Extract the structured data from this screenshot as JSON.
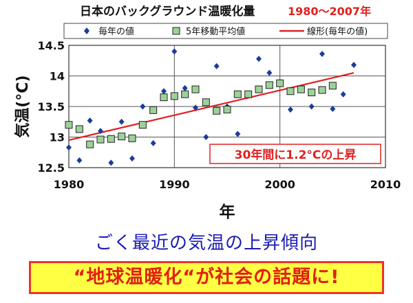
{
  "chart_data": {
    "type": "scatter",
    "title": "日本のバックグラウンド温暖化量",
    "title_period": "1980〜2007年",
    "xlabel": "年",
    "ylabel": "気温(°C)",
    "xlim": [
      1980,
      2010
    ],
    "ylim": [
      12.5,
      14.5
    ],
    "x_ticks": [
      "1980",
      "1990",
      "2000",
      "2010"
    ],
    "y_ticks": [
      "12.5",
      "13",
      "13.5",
      "14",
      "14.5"
    ],
    "grid": true,
    "legend_position": "top",
    "series": [
      {
        "name": "毎年の値",
        "marker": "diamond",
        "color": "#1a3c9c",
        "points": [
          [
            1980,
            12.83
          ],
          [
            1981,
            12.62
          ],
          [
            1982,
            13.27
          ],
          [
            1983,
            13.1
          ],
          [
            1984,
            12.58
          ],
          [
            1985,
            13.25
          ],
          [
            1986,
            12.65
          ],
          [
            1987,
            13.5
          ],
          [
            1988,
            12.9
          ],
          [
            1989,
            13.75
          ],
          [
            1990,
            14.4
          ],
          [
            1991,
            13.8
          ],
          [
            1992,
            13.48
          ],
          [
            1993,
            13.0
          ],
          [
            1994,
            14.16
          ],
          [
            1995,
            13.5
          ],
          [
            1996,
            13.05
          ],
          [
            1997,
            13.7
          ],
          [
            1998,
            14.28
          ],
          [
            1999,
            14.05
          ],
          [
            2000,
            13.9
          ],
          [
            2001,
            13.45
          ],
          [
            2002,
            13.8
          ],
          [
            2003,
            13.5
          ],
          [
            2004,
            14.36
          ],
          [
            2005,
            13.46
          ],
          [
            2006,
            13.7
          ],
          [
            2007,
            14.18
          ]
        ]
      },
      {
        "name": "5年移動平均値",
        "marker": "square",
        "color": "#9ed19a",
        "edge_color": "#222222",
        "points": [
          [
            1980,
            13.2
          ],
          [
            1981,
            13.13
          ],
          [
            1982,
            12.88
          ],
          [
            1983,
            12.96
          ],
          [
            1984,
            12.97
          ],
          [
            1985,
            13.01
          ],
          [
            1986,
            12.98
          ],
          [
            1987,
            13.2
          ],
          [
            1988,
            13.44
          ],
          [
            1989,
            13.65
          ],
          [
            1990,
            13.67
          ],
          [
            1991,
            13.7
          ],
          [
            1992,
            13.78
          ],
          [
            1993,
            13.57
          ],
          [
            1994,
            13.43
          ],
          [
            1995,
            13.45
          ],
          [
            1996,
            13.7
          ],
          [
            1997,
            13.7
          ],
          [
            1998,
            13.78
          ],
          [
            1999,
            13.85
          ],
          [
            2000,
            13.88
          ],
          [
            2001,
            13.75
          ],
          [
            2002,
            13.78
          ],
          [
            2003,
            13.73
          ],
          [
            2004,
            13.77
          ],
          [
            2005,
            13.84
          ]
        ]
      },
      {
        "name": "線形(毎年の値)",
        "type": "line",
        "color": "#e02020",
        "points": [
          [
            1980,
            12.95
          ],
          [
            2007,
            14.05
          ]
        ]
      }
    ],
    "annotation": "30年間に1.2°Cの上昇"
  },
  "subtitle": "ごく最近の気温の上昇傾向",
  "banner": "“地球温暖化“が社会の話題に!"
}
